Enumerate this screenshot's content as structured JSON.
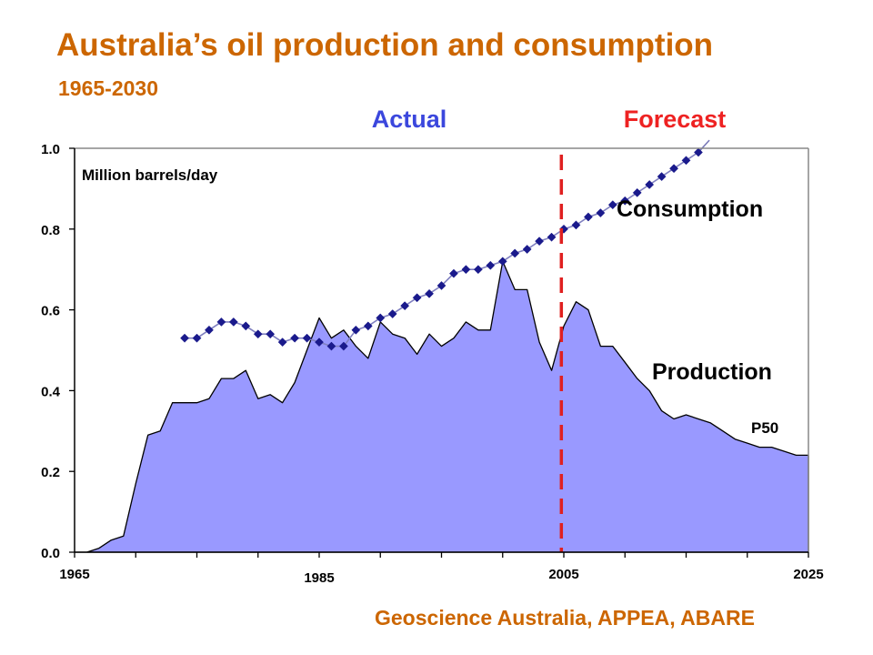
{
  "title": "Australia’s oil production and consumption",
  "subtitle": "1965-2030",
  "source": "Geoscience Australia, APPEA, ABARE",
  "colors": {
    "title": "#cc6600",
    "actual": "#3b47dd",
    "forecast": "#ee2222",
    "production_fill": "#9999ff",
    "consumption": "#1a1a8c",
    "divider": "#e02020"
  },
  "chart_data": {
    "type": "area",
    "ylabel": "Million barrels/day",
    "xlim": [
      1965,
      2025
    ],
    "ylim": [
      0,
      1.0
    ],
    "x_ticks": [
      1965,
      1985,
      2005,
      2025
    ],
    "y_ticks": [
      "0.0",
      "0.2",
      "0.4",
      "0.6",
      "0.8",
      "1.0"
    ],
    "grid": false,
    "period_labels": {
      "actual": "Actual",
      "forecast": "Forecast"
    },
    "divider_x": 2004.8,
    "annotations": {
      "consumption": "Consumption",
      "production": "Production",
      "p50": "P50"
    },
    "series": [
      {
        "name": "Production",
        "type": "area",
        "x": [
          1965,
          1966,
          1967,
          1968,
          1969,
          1970,
          1971,
          1972,
          1973,
          1974,
          1975,
          1976,
          1977,
          1978,
          1979,
          1980,
          1981,
          1982,
          1983,
          1984,
          1985,
          1986,
          1987,
          1988,
          1989,
          1990,
          1991,
          1992,
          1993,
          1994,
          1995,
          1996,
          1997,
          1998,
          1999,
          2000,
          2001,
          2002,
          2003,
          2004,
          2005,
          2006,
          2007,
          2008,
          2009,
          2010,
          2011,
          2012,
          2013,
          2014,
          2015,
          2016,
          2017,
          2018,
          2019,
          2020,
          2021,
          2022,
          2023,
          2024,
          2025
        ],
        "y": [
          0.0,
          0.0,
          0.01,
          0.03,
          0.04,
          0.17,
          0.29,
          0.3,
          0.37,
          0.37,
          0.37,
          0.38,
          0.43,
          0.43,
          0.45,
          0.38,
          0.39,
          0.37,
          0.42,
          0.5,
          0.58,
          0.53,
          0.55,
          0.51,
          0.48,
          0.57,
          0.54,
          0.53,
          0.49,
          0.54,
          0.51,
          0.53,
          0.57,
          0.55,
          0.55,
          0.72,
          0.65,
          0.65,
          0.52,
          0.45,
          0.56,
          0.62,
          0.6,
          0.51,
          0.51,
          0.47,
          0.43,
          0.4,
          0.35,
          0.33,
          0.34,
          0.33,
          0.32,
          0.3,
          0.28,
          0.27,
          0.26,
          0.26,
          0.25,
          0.24,
          0.24
        ]
      },
      {
        "name": "Consumption",
        "type": "line",
        "x": [
          1974,
          1975,
          1976,
          1977,
          1978,
          1979,
          1980,
          1981,
          1982,
          1983,
          1984,
          1985,
          1986,
          1987,
          1988,
          1989,
          1990,
          1991,
          1992,
          1993,
          1994,
          1995,
          1996,
          1997,
          1998,
          1999,
          2000,
          2001,
          2002,
          2003,
          2004,
          2005,
          2006,
          2007,
          2008,
          2009,
          2010,
          2011,
          2012,
          2013,
          2014,
          2015,
          2016
        ],
        "y": [
          0.53,
          0.53,
          0.55,
          0.57,
          0.57,
          0.56,
          0.54,
          0.54,
          0.52,
          0.53,
          0.53,
          0.52,
          0.51,
          0.51,
          0.55,
          0.56,
          0.58,
          0.59,
          0.61,
          0.63,
          0.64,
          0.66,
          0.69,
          0.7,
          0.7,
          0.71,
          0.72,
          0.74,
          0.75,
          0.77,
          0.78,
          0.8,
          0.81,
          0.83,
          0.84,
          0.86,
          0.87,
          0.89,
          0.91,
          0.93,
          0.95,
          0.97,
          0.99
        ]
      }
    ]
  }
}
